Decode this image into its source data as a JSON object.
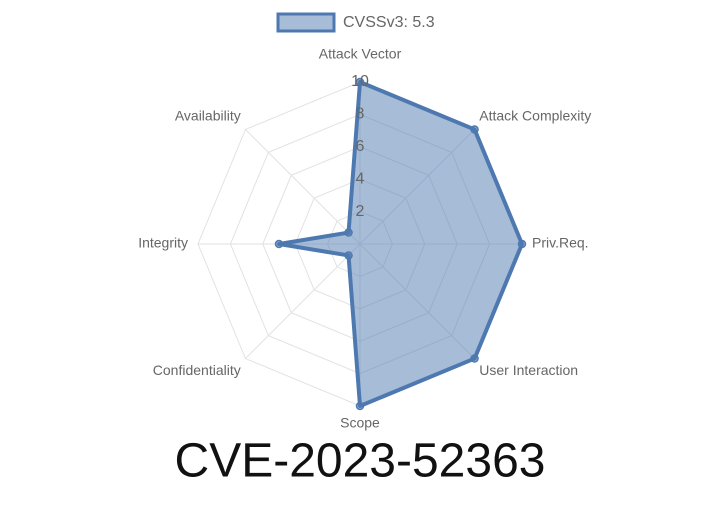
{
  "chart_data": {
    "type": "radar",
    "title": "CVE-2023-52363",
    "categories": [
      "Attack Vector",
      "Attack Complexity",
      "Priv.Req.",
      "User Interaction",
      "Scope",
      "Confidentiality",
      "Integrity",
      "Availability"
    ],
    "series": [
      {
        "name": "CVSSv3: 5.3",
        "color": "#4e79b0",
        "values": [
          10,
          10,
          10,
          10,
          10,
          1,
          5,
          1
        ]
      }
    ],
    "ylim": [
      0,
      10
    ],
    "yticks": [
      2,
      4,
      6,
      8,
      10
    ],
    "grid": true,
    "legend": "top"
  }
}
